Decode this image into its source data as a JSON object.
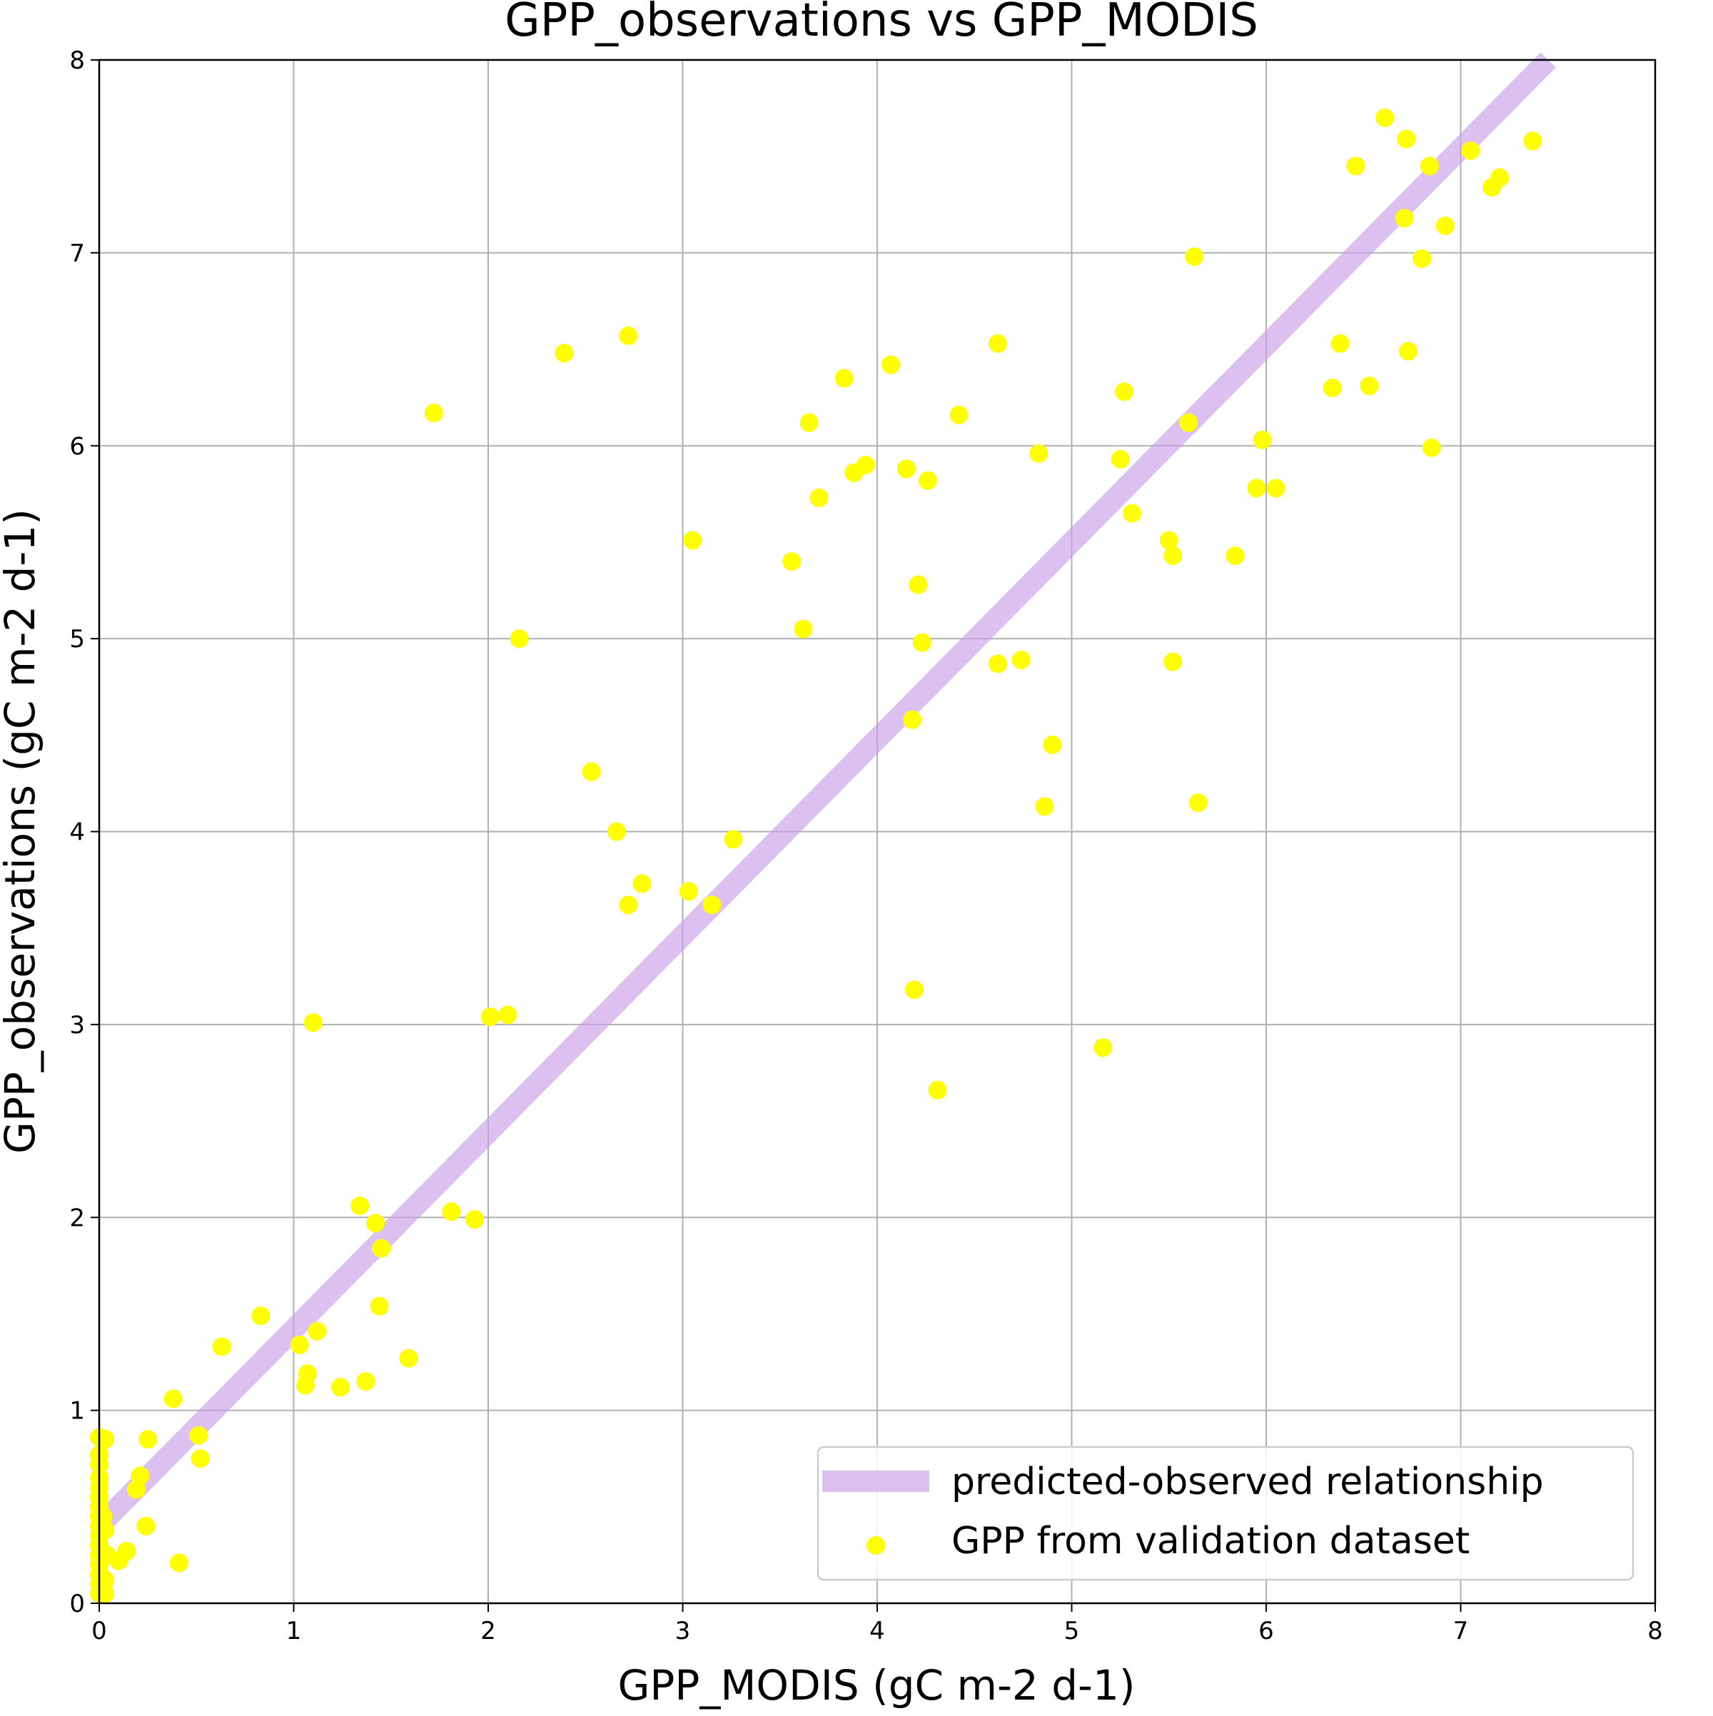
{
  "chart_data": {
    "type": "scatter",
    "title": "GPP_observations vs GPP_MODIS",
    "xlabel": "GPP_MODIS (gC m-2 d-1)",
    "ylabel": "GPP_observations (gC m-2 d-1)",
    "xlim": [
      0,
      8
    ],
    "ylim": [
      0,
      8
    ],
    "xticks": [
      "0",
      "1",
      "2",
      "3",
      "4",
      "5",
      "6",
      "7",
      "8"
    ],
    "yticks": [
      "0",
      "1",
      "2",
      "3",
      "4",
      "5",
      "6",
      "7",
      "8"
    ],
    "grid": true,
    "legend_position": "lower-right",
    "series": [
      {
        "name": "predicted-observed relationship",
        "kind": "line",
        "color": "#c9a0e8",
        "x": [
          0,
          7.45
        ],
        "y": [
          0.4,
          8.0
        ]
      },
      {
        "name": "GPP from validation dataset",
        "kind": "scatter",
        "color": "#ffff00",
        "points": [
          [
            0.0,
            0.86
          ],
          [
            0.0,
            0.77
          ],
          [
            0.0,
            0.72
          ],
          [
            0.0,
            0.65
          ],
          [
            0.0,
            0.6
          ],
          [
            0.0,
            0.55
          ],
          [
            0.0,
            0.5
          ],
          [
            0.0,
            0.45
          ],
          [
            0.0,
            0.4
          ],
          [
            0.0,
            0.35
          ],
          [
            0.0,
            0.3
          ],
          [
            0.0,
            0.25
          ],
          [
            0.0,
            0.2
          ],
          [
            0.0,
            0.15
          ],
          [
            0.0,
            0.1
          ],
          [
            0.0,
            0.05
          ],
          [
            0.03,
            0.85
          ],
          [
            0.02,
            0.45
          ],
          [
            0.03,
            0.38
          ],
          [
            0.04,
            0.25
          ],
          [
            0.03,
            0.12
          ],
          [
            0.03,
            0.05
          ],
          [
            0.1,
            0.22
          ],
          [
            0.14,
            0.27
          ],
          [
            0.19,
            0.59
          ],
          [
            0.21,
            0.66
          ],
          [
            0.24,
            0.4
          ],
          [
            0.25,
            0.85
          ],
          [
            0.38,
            1.06
          ],
          [
            0.41,
            0.21
          ],
          [
            0.51,
            0.87
          ],
          [
            0.52,
            0.75
          ],
          [
            0.63,
            1.33
          ],
          [
            0.83,
            1.49
          ],
          [
            1.03,
            1.34
          ],
          [
            1.06,
            1.13
          ],
          [
            1.07,
            1.19
          ],
          [
            1.1,
            3.01
          ],
          [
            1.12,
            1.41
          ],
          [
            1.24,
            1.12
          ],
          [
            1.34,
            2.06
          ],
          [
            1.37,
            1.15
          ],
          [
            1.42,
            1.97
          ],
          [
            1.44,
            1.54
          ],
          [
            1.45,
            1.84
          ],
          [
            1.59,
            1.27
          ],
          [
            1.72,
            6.17
          ],
          [
            1.81,
            2.03
          ],
          [
            1.93,
            1.99
          ],
          [
            2.01,
            3.04
          ],
          [
            2.1,
            3.05
          ],
          [
            2.16,
            5.0
          ],
          [
            2.39,
            6.48
          ],
          [
            2.53,
            4.31
          ],
          [
            2.66,
            4.0
          ],
          [
            2.72,
            6.57
          ],
          [
            2.72,
            3.62
          ],
          [
            2.79,
            3.73
          ],
          [
            3.03,
            3.69
          ],
          [
            3.05,
            5.51
          ],
          [
            3.15,
            3.62
          ],
          [
            3.26,
            3.96
          ],
          [
            3.56,
            5.4
          ],
          [
            3.62,
            5.05
          ],
          [
            3.65,
            6.12
          ],
          [
            3.7,
            5.73
          ],
          [
            3.83,
            6.35
          ],
          [
            3.88,
            5.86
          ],
          [
            3.94,
            5.9
          ],
          [
            4.07,
            6.42
          ],
          [
            4.15,
            5.88
          ],
          [
            4.18,
            4.58
          ],
          [
            4.19,
            3.18
          ],
          [
            4.21,
            5.28
          ],
          [
            4.23,
            4.98
          ],
          [
            4.26,
            5.82
          ],
          [
            4.31,
            2.66
          ],
          [
            4.42,
            6.16
          ],
          [
            4.62,
            6.53
          ],
          [
            4.62,
            4.87
          ],
          [
            4.74,
            4.89
          ],
          [
            4.83,
            5.96
          ],
          [
            4.86,
            4.13
          ],
          [
            4.9,
            4.45
          ],
          [
            5.16,
            2.88
          ],
          [
            5.25,
            5.93
          ],
          [
            5.27,
            6.28
          ],
          [
            5.31,
            5.65
          ],
          [
            5.5,
            5.51
          ],
          [
            5.52,
            5.43
          ],
          [
            5.52,
            4.88
          ],
          [
            5.6,
            6.12
          ],
          [
            5.63,
            6.98
          ],
          [
            5.65,
            4.15
          ],
          [
            5.84,
            5.43
          ],
          [
            5.95,
            5.78
          ],
          [
            5.98,
            6.03
          ],
          [
            6.05,
            5.78
          ],
          [
            6.34,
            6.3
          ],
          [
            6.38,
            6.53
          ],
          [
            6.46,
            7.45
          ],
          [
            6.53,
            6.31
          ],
          [
            6.61,
            7.7
          ],
          [
            6.71,
            7.18
          ],
          [
            6.72,
            7.59
          ],
          [
            6.73,
            6.49
          ],
          [
            6.8,
            6.97
          ],
          [
            6.84,
            7.45
          ],
          [
            6.85,
            5.99
          ],
          [
            6.92,
            7.14
          ],
          [
            7.05,
            7.53
          ],
          [
            7.16,
            7.34
          ],
          [
            7.2,
            7.39
          ],
          [
            7.37,
            7.58
          ]
        ]
      }
    ]
  }
}
